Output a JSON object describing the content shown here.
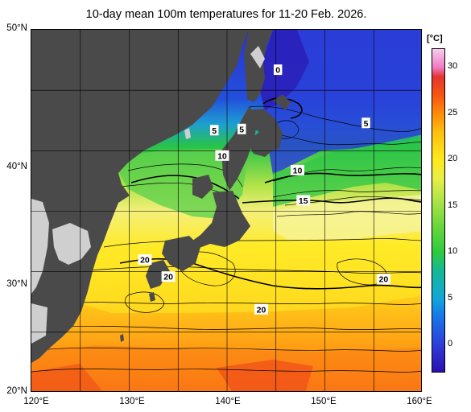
{
  "title": "10-day mean 100m temperatures for 11-20 Feb. 2026.",
  "axes": {
    "lat_labels": [
      {
        "value": 50,
        "text": "50°N"
      },
      {
        "value": 40,
        "text": "40°N"
      },
      {
        "value": 30,
        "text": "30°N"
      },
      {
        "value": 20,
        "text": "20°N"
      }
    ],
    "lon_labels": [
      {
        "value": 120,
        "text": "120°E"
      },
      {
        "value": 130,
        "text": "130°E"
      },
      {
        "value": 140,
        "text": "140°E"
      },
      {
        "value": 150,
        "text": "150°E"
      },
      {
        "value": 160,
        "text": "160°E"
      }
    ],
    "lat_range": [
      20,
      50
    ],
    "lon_range": [
      120,
      160
    ],
    "grid_interval_deg": 5
  },
  "colorbar": {
    "unit": "[°C]",
    "range": [
      -3,
      32
    ],
    "ticks": [
      {
        "value": 0,
        "text": "0"
      },
      {
        "value": 5,
        "text": "5"
      },
      {
        "value": 10,
        "text": "10"
      },
      {
        "value": 15,
        "text": "15"
      },
      {
        "value": 20,
        "text": "20"
      },
      {
        "value": 25,
        "text": "25"
      },
      {
        "value": 30,
        "text": "30"
      }
    ],
    "stops": [
      {
        "value": -3,
        "color": "#2c0fae"
      },
      {
        "value": 0,
        "color": "#2d3fdc"
      },
      {
        "value": 3,
        "color": "#1876e8"
      },
      {
        "value": 5,
        "color": "#13a7d8"
      },
      {
        "value": 8,
        "color": "#16b894"
      },
      {
        "value": 10,
        "color": "#2ecb3e"
      },
      {
        "value": 13,
        "color": "#6ed83c"
      },
      {
        "value": 16,
        "color": "#b8e64a"
      },
      {
        "value": 18,
        "color": "#e8ef45"
      },
      {
        "value": 20,
        "color": "#ffe91c"
      },
      {
        "value": 23,
        "color": "#ffbf0f"
      },
      {
        "value": 25,
        "color": "#ff8b0a"
      },
      {
        "value": 27,
        "color": "#f65512"
      },
      {
        "value": 29,
        "color": "#e43432"
      },
      {
        "value": 30,
        "color": "#f07bc4"
      },
      {
        "value": 32,
        "color": "#f8ccee"
      }
    ]
  },
  "contour_labels": [
    {
      "text": "0",
      "lon": 145.2,
      "lat": 46.7
    },
    {
      "text": "5",
      "lon": 138.7,
      "lat": 41.7
    },
    {
      "text": "5",
      "lon": 141.5,
      "lat": 41.8
    },
    {
      "text": "5",
      "lon": 154.2,
      "lat": 42.3
    },
    {
      "text": "10",
      "lon": 139.5,
      "lat": 39.6
    },
    {
      "text": "10",
      "lon": 147.2,
      "lat": 38.4
    },
    {
      "text": "15",
      "lon": 147.8,
      "lat": 35.9
    },
    {
      "text": "20",
      "lon": 131.6,
      "lat": 31.0
    },
    {
      "text": "20",
      "lon": 134.0,
      "lat": 29.6
    },
    {
      "text": "20",
      "lon": 143.5,
      "lat": 26.9
    },
    {
      "text": "20",
      "lon": 156.0,
      "lat": 29.4
    }
  ],
  "colors": {
    "land": "#4a4a4a",
    "land_light": "#cfcfcf",
    "grid": "#000000",
    "contour": "#000000"
  }
}
